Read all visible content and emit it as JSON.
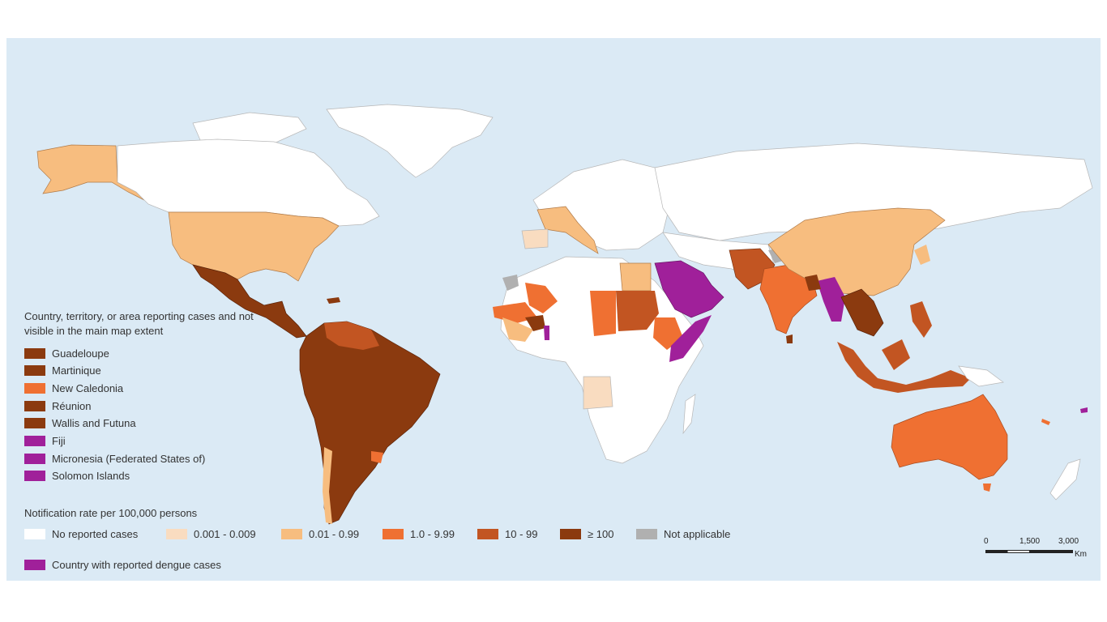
{
  "colors": {
    "ocean": "#dbeaf5",
    "no_cases": "#ffffff",
    "c1": "#f9dcc0",
    "c2": "#f7bd7f",
    "c3": "#ef7032",
    "c4": "#c25522",
    "c5": "#8b3a0f",
    "na": "#b0b0b0",
    "dengue": "#a0209a",
    "border": "#9a9a9a"
  },
  "legend_small": {
    "heading": "Country, territory, or area reporting cases and not visible in the main map extent",
    "items": [
      {
        "label": "Guadeloupe",
        "color": "#8b3a0f"
      },
      {
        "label": "Martinique",
        "color": "#8b3a0f"
      },
      {
        "label": "New Caledonia",
        "color": "#ef7032"
      },
      {
        "label": "Réunion",
        "color": "#8b3a0f"
      },
      {
        "label": "Wallis and Futuna",
        "color": "#8b3a0f"
      },
      {
        "label": "Fiji",
        "color": "#a0209a"
      },
      {
        "label": "Micronesia (Federated States of)",
        "color": "#a0209a"
      },
      {
        "label": "Solomon Islands",
        "color": "#a0209a"
      }
    ]
  },
  "legend_rate": {
    "heading": "Notification rate per 100,000 persons",
    "items": [
      {
        "label": "No reported cases",
        "color": "#ffffff"
      },
      {
        "label": "0.001 - 0.009",
        "color": "#f9dcc0"
      },
      {
        "label": "0.01 - 0.99",
        "color": "#f7bd7f"
      },
      {
        "label": "1.0 - 9.99",
        "color": "#ef7032"
      },
      {
        "label": "10 - 99",
        "color": "#c25522"
      },
      {
        "label": "≥ 100",
        "color": "#8b3a0f"
      },
      {
        "label": "Not applicable",
        "color": "#b0b0b0"
      }
    ],
    "dengue_label": "Country with reported dengue cases",
    "dengue_color": "#a0209a"
  },
  "scale_bar": {
    "ticks": [
      "0",
      "1,500",
      "3,000"
    ],
    "unit": "Km"
  }
}
